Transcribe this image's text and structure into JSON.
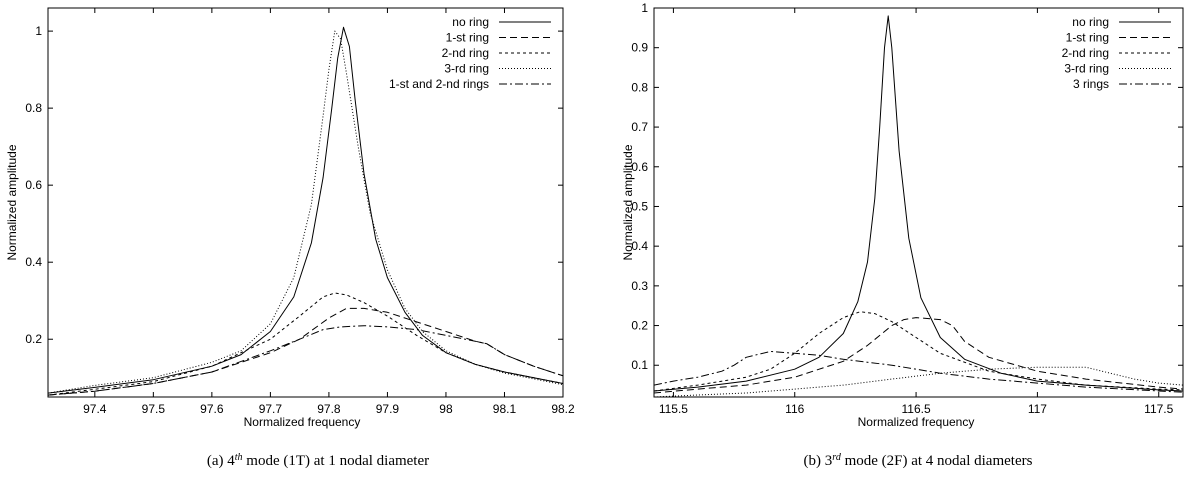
{
  "chart_data": [
    {
      "type": "line",
      "panel_label": "(a)",
      "caption": {
        "prefix": "(a) 4",
        "sup": "th",
        "suffix": " mode (1T) at 1 nodal diameter"
      },
      "xlabel": "Normalized frequency",
      "ylabel": "Normalized amplitude",
      "xlim": [
        97.32,
        98.2
      ],
      "ylim": [
        0.05,
        1.06
      ],
      "xticks": [
        97.4,
        97.5,
        97.6,
        97.7,
        97.8,
        97.9,
        98,
        98.1,
        98.2
      ],
      "xtick_labels": [
        "97.4",
        "97.5",
        "97.6",
        "97.7",
        "97.8",
        "97.9",
        "98",
        "98.1",
        "98.2"
      ],
      "yticks": [
        0.2,
        0.4,
        0.6,
        0.8,
        1
      ],
      "ytick_labels": [
        "0.2",
        "0.4",
        "0.6",
        "0.8",
        "1"
      ],
      "legend_position": "top-right",
      "series": [
        {
          "name": "no ring",
          "dash": "solid",
          "x": [
            97.32,
            97.4,
            97.5,
            97.6,
            97.65,
            97.7,
            97.74,
            97.77,
            97.79,
            97.805,
            97.815,
            97.825,
            97.835,
            97.845,
            97.86,
            97.88,
            97.9,
            97.93,
            97.96,
            98,
            98.05,
            98.1,
            98.2
          ],
          "y": [
            0.06,
            0.075,
            0.095,
            0.13,
            0.16,
            0.22,
            0.31,
            0.45,
            0.62,
            0.8,
            0.93,
            1.01,
            0.96,
            0.82,
            0.63,
            0.46,
            0.36,
            0.27,
            0.21,
            0.165,
            0.135,
            0.115,
            0.085
          ]
        },
        {
          "name": "1-st ring",
          "dash": "dashed",
          "x": [
            97.32,
            97.4,
            97.5,
            97.6,
            97.7,
            97.75,
            97.8,
            97.83,
            97.86,
            97.9,
            97.95,
            98,
            98.05,
            98.07,
            98.1,
            98.15,
            98.2
          ],
          "y": [
            0.055,
            0.065,
            0.085,
            0.115,
            0.165,
            0.2,
            0.255,
            0.28,
            0.28,
            0.27,
            0.245,
            0.22,
            0.195,
            0.188,
            0.16,
            0.13,
            0.105
          ]
        },
        {
          "name": "2-nd ring",
          "dash": "short-dashed",
          "x": [
            97.32,
            97.4,
            97.5,
            97.6,
            97.7,
            97.75,
            97.79,
            97.81,
            97.83,
            97.86,
            97.9,
            97.95,
            98,
            98.05,
            98.1,
            98.2
          ],
          "y": [
            0.055,
            0.07,
            0.09,
            0.13,
            0.2,
            0.26,
            0.31,
            0.32,
            0.315,
            0.295,
            0.26,
            0.21,
            0.165,
            0.135,
            0.115,
            0.085
          ]
        },
        {
          "name": "3-rd ring",
          "dash": "dotted",
          "x": [
            97.32,
            97.4,
            97.5,
            97.6,
            97.65,
            97.7,
            97.74,
            97.77,
            97.79,
            97.8,
            97.81,
            97.82,
            97.83,
            97.85,
            97.87,
            97.9,
            97.93,
            97.96,
            98,
            98.05,
            98.1,
            98.2
          ],
          "y": [
            0.06,
            0.08,
            0.1,
            0.14,
            0.17,
            0.24,
            0.36,
            0.55,
            0.78,
            0.9,
            1.0,
            0.98,
            0.89,
            0.7,
            0.53,
            0.38,
            0.28,
            0.22,
            0.17,
            0.135,
            0.112,
            0.082
          ]
        },
        {
          "name": "1-st and 2-nd rings",
          "dash": "dash-dot",
          "x": [
            97.32,
            97.4,
            97.5,
            97.6,
            97.7,
            97.75,
            97.79,
            97.82,
            97.86,
            97.9,
            97.95,
            98,
            98.05,
            98.07,
            98.1,
            98.15,
            98.2
          ],
          "y": [
            0.055,
            0.065,
            0.085,
            0.115,
            0.17,
            0.2,
            0.225,
            0.232,
            0.235,
            0.232,
            0.225,
            0.21,
            0.195,
            0.188,
            0.16,
            0.13,
            0.105
          ]
        }
      ]
    },
    {
      "type": "line",
      "panel_label": "(b)",
      "caption": {
        "prefix": "(b) 3",
        "sup": "rd",
        "suffix": " mode (2F) at 4 nodal diameters"
      },
      "xlabel": "Normalized frequency",
      "ylabel": "Normalized amplitude",
      "xlim": [
        115.42,
        117.6
      ],
      "ylim": [
        0.02,
        1.0
      ],
      "xticks": [
        115.5,
        116,
        116.5,
        117,
        117.5
      ],
      "xtick_labels": [
        "115.5",
        "116",
        "116.5",
        "117",
        "117.5"
      ],
      "yticks": [
        0.1,
        0.2,
        0.3,
        0.4,
        0.5,
        0.6,
        0.7,
        0.8,
        0.9,
        1
      ],
      "ytick_labels": [
        "0.1",
        "0.2",
        "0.3",
        "0.4",
        "0.5",
        "0.6",
        "0.7",
        "0.8",
        "0.9",
        "1"
      ],
      "legend_position": "top-right",
      "series": [
        {
          "name": "no ring",
          "dash": "solid",
          "x": [
            115.42,
            115.6,
            115.8,
            116.0,
            116.1,
            116.2,
            116.26,
            116.3,
            116.33,
            116.35,
            116.37,
            116.385,
            116.4,
            116.43,
            116.47,
            116.52,
            116.6,
            116.7,
            116.85,
            117.0,
            117.2,
            117.5,
            117.6
          ],
          "y": [
            0.035,
            0.045,
            0.06,
            0.09,
            0.12,
            0.18,
            0.26,
            0.36,
            0.52,
            0.7,
            0.9,
            0.98,
            0.9,
            0.64,
            0.42,
            0.27,
            0.17,
            0.115,
            0.08,
            0.06,
            0.05,
            0.038,
            0.035
          ]
        },
        {
          "name": "1-st ring",
          "dash": "dashed",
          "x": [
            115.42,
            115.6,
            115.8,
            116.0,
            116.2,
            116.3,
            116.4,
            116.45,
            116.5,
            116.6,
            116.65,
            116.7,
            116.8,
            117.0,
            117.2,
            117.5,
            117.6
          ],
          "y": [
            0.03,
            0.04,
            0.05,
            0.07,
            0.11,
            0.15,
            0.2,
            0.215,
            0.22,
            0.215,
            0.2,
            0.16,
            0.12,
            0.085,
            0.065,
            0.045,
            0.04
          ]
        },
        {
          "name": "2-nd ring",
          "dash": "short-dashed",
          "x": [
            115.42,
            115.6,
            115.8,
            115.9,
            116.0,
            116.1,
            116.2,
            116.27,
            116.33,
            116.4,
            116.5,
            116.6,
            116.8,
            117.0,
            117.2,
            117.5,
            117.6
          ],
          "y": [
            0.035,
            0.05,
            0.07,
            0.09,
            0.13,
            0.18,
            0.22,
            0.235,
            0.23,
            0.21,
            0.17,
            0.13,
            0.085,
            0.065,
            0.05,
            0.04,
            0.038
          ]
        },
        {
          "name": "3-rd ring",
          "dash": "dotted",
          "x": [
            115.42,
            115.6,
            115.8,
            116.0,
            116.2,
            116.4,
            116.6,
            116.8,
            117.0,
            117.2,
            117.3,
            117.4,
            117.5,
            117.6
          ],
          "y": [
            0.02,
            0.025,
            0.03,
            0.04,
            0.05,
            0.065,
            0.08,
            0.09,
            0.095,
            0.095,
            0.08,
            0.065,
            0.055,
            0.05
          ]
        },
        {
          "name": "3 rings",
          "dash": "dash-dot",
          "x": [
            115.42,
            115.5,
            115.6,
            115.7,
            115.75,
            115.8,
            115.9,
            116.0,
            116.1,
            116.2,
            116.4,
            116.6,
            116.8,
            117.0,
            117.2,
            117.5,
            117.6
          ],
          "y": [
            0.05,
            0.06,
            0.07,
            0.085,
            0.1,
            0.12,
            0.135,
            0.13,
            0.125,
            0.115,
            0.1,
            0.08,
            0.065,
            0.055,
            0.045,
            0.035,
            0.032
          ]
        }
      ]
    }
  ]
}
